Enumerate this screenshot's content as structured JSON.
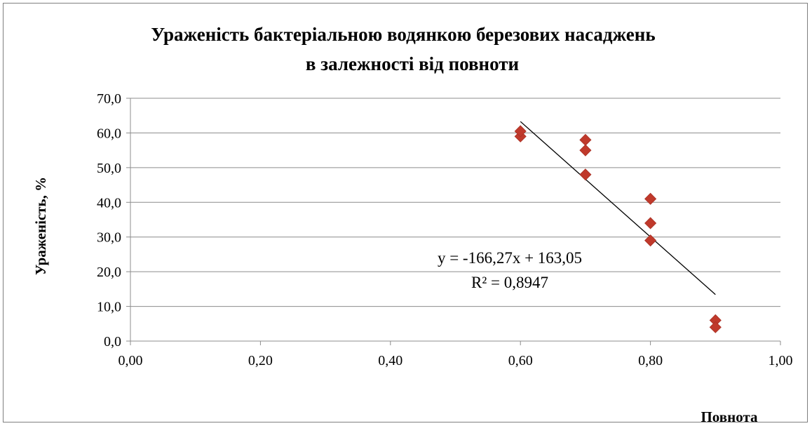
{
  "chart_data": {
    "type": "scatter",
    "title_line1": "Ураженість бактеріальною водянкою березових насаджень",
    "title_line2": "в залежності від повноти",
    "xlabel": "Повнота",
    "ylabel": "Ураженість, %",
    "xlim": [
      0,
      1
    ],
    "ylim": [
      0,
      70
    ],
    "x_ticks": [
      "0,00",
      "0,20",
      "0,40",
      "0,60",
      "0,80",
      "1,00"
    ],
    "y_ticks": [
      "0,0",
      "10,0",
      "20,0",
      "30,0",
      "40,0",
      "50,0",
      "60,0",
      "70,0"
    ],
    "grid": "horizontal",
    "marker_color": "#c0392b",
    "points": [
      {
        "x": 0.6,
        "y": 59.0
      },
      {
        "x": 0.6,
        "y": 60.5
      },
      {
        "x": 0.7,
        "y": 58.0
      },
      {
        "x": 0.7,
        "y": 55.0
      },
      {
        "x": 0.7,
        "y": 48.0
      },
      {
        "x": 0.8,
        "y": 41.0
      },
      {
        "x": 0.8,
        "y": 34.0
      },
      {
        "x": 0.8,
        "y": 29.0
      },
      {
        "x": 0.9,
        "y": 6.0
      },
      {
        "x": 0.9,
        "y": 4.0
      }
    ],
    "trendline": {
      "slope": -166.27,
      "intercept": 163.05,
      "x_range": [
        0.6,
        0.9
      ],
      "color": "#000000"
    },
    "equation": "y = -166,27x + 163,05",
    "r_squared": "R² = 0,8947"
  }
}
